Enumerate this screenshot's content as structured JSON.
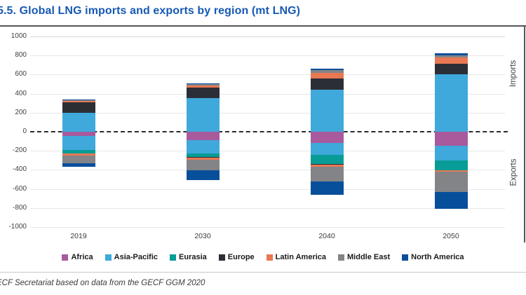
{
  "title": "5.5. Global LNG imports and exports by region (mt LNG)",
  "source_note": "ECF Secretariat based on data from the GECF GGM 2020",
  "right_axis": {
    "imports": "Imports",
    "exports": "Exports"
  },
  "chart_data": {
    "type": "bar",
    "stacked": true,
    "title": "Global LNG imports and exports by region (mt LNG)",
    "unit": "mt LNG",
    "categories": [
      "2019",
      "2030",
      "2040",
      "2050"
    ],
    "ylim": [
      -1000,
      1000
    ],
    "ytick_step": 200,
    "yticks": [
      1000,
      800,
      600,
      400,
      200,
      0,
      -200,
      -400,
      -600,
      -800,
      -1000
    ],
    "grid": true,
    "zero_line": "dashed",
    "legend_position": "bottom",
    "positive_side_label": "Imports",
    "negative_side_label": "Exports",
    "series": [
      {
        "name": "Africa",
        "color": "#a85a9d",
        "imports": [
          0,
          0,
          0,
          0
        ],
        "exports": [
          45,
          90,
          115,
          150
        ]
      },
      {
        "name": "Asia-Pacific",
        "color": "#3fa9dc",
        "imports": [
          195,
          350,
          440,
          600
        ],
        "exports": [
          145,
          140,
          130,
          150
        ]
      },
      {
        "name": "Eurasia",
        "color": "#089c96",
        "imports": [
          0,
          0,
          0,
          0
        ],
        "exports": [
          40,
          35,
          95,
          105
        ]
      },
      {
        "name": "Europe",
        "color": "#2c2e36",
        "imports": [
          115,
          115,
          120,
          110
        ],
        "exports": [
          0,
          10,
          5,
          0
        ]
      },
      {
        "name": "Latin America",
        "color": "#e87853",
        "imports": [
          15,
          20,
          60,
          70
        ],
        "exports": [
          20,
          20,
          20,
          15
        ]
      },
      {
        "name": "Middle East",
        "color": "#828487",
        "imports": [
          5,
          15,
          25,
          20
        ],
        "exports": [
          80,
          110,
          155,
          210
        ]
      },
      {
        "name": "North America",
        "color": "#074f9b",
        "imports": [
          10,
          10,
          15,
          20
        ],
        "exports": [
          35,
          100,
          145,
          180
        ]
      }
    ]
  }
}
